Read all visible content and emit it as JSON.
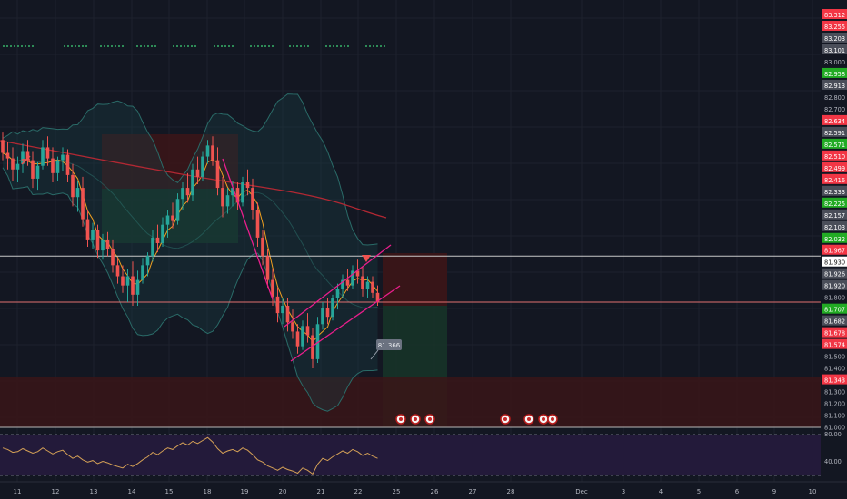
{
  "chart": {
    "type": "candlestick-trading-chart",
    "colors": {
      "background": "#131722",
      "up": "#26a69a",
      "down": "#ef5350",
      "bollinger": "#2a6b68",
      "ma_slow": "#b22833",
      "ma_fast": "#f0a020",
      "channel": "#e91e8c",
      "rsi_line": "#d4a056",
      "rsi_band": "#231a3a",
      "grid": "#1e222d",
      "zone_red": "#3a1518",
      "zone_green": "#173328"
    }
  },
  "chart_data": {
    "type": "candlestick",
    "y_min": 81.0,
    "y_max": 83.32,
    "x_labels": [
      "11",
      "12",
      "13",
      "14",
      "15",
      "18",
      "19",
      "20",
      "21",
      "22",
      "25",
      "26",
      "27",
      "28",
      "Dec",
      "3",
      "4",
      "5",
      "6",
      "9",
      "10"
    ],
    "price_labels": [
      {
        "text": "83.312",
        "color": "red"
      },
      {
        "text": "83.255",
        "color": "red"
      },
      {
        "text": "83.203",
        "color": "gray"
      },
      {
        "text": "83.101",
        "color": "gray"
      },
      {
        "text": "83.000",
        "color": "plain"
      },
      {
        "text": "82.958",
        "color": "green"
      },
      {
        "text": "82.913",
        "color": "gray"
      },
      {
        "text": "82.800",
        "color": "plain"
      },
      {
        "text": "82.700",
        "color": "plain"
      },
      {
        "text": "82.634",
        "color": "red"
      },
      {
        "text": "82.591",
        "color": "gray"
      },
      {
        "text": "82.571",
        "color": "green"
      },
      {
        "text": "82.510",
        "color": "red"
      },
      {
        "text": "82.499",
        "color": "red"
      },
      {
        "text": "82.416",
        "color": "red"
      },
      {
        "text": "82.333",
        "color": "gray"
      },
      {
        "text": "82.225",
        "color": "green"
      },
      {
        "text": "82.157",
        "color": "gray"
      },
      {
        "text": "82.103",
        "color": "gray"
      },
      {
        "text": "82.032",
        "color": "green"
      },
      {
        "text": "81.967",
        "color": "red"
      },
      {
        "text": "81.930",
        "color": "white"
      },
      {
        "text": "81.926",
        "color": "gray"
      },
      {
        "text": "81.920",
        "color": "gray"
      },
      {
        "text": "81.800",
        "color": "plain"
      },
      {
        "text": "81.707",
        "color": "green"
      },
      {
        "text": "81.682",
        "color": "gray"
      },
      {
        "text": "81.678",
        "color": "red"
      },
      {
        "text": "81.574",
        "color": "red"
      },
      {
        "text": "81.500",
        "color": "plain"
      },
      {
        "text": "81.400",
        "color": "plain"
      },
      {
        "text": "81.343",
        "color": "red"
      },
      {
        "text": "81.300",
        "color": "plain"
      },
      {
        "text": "81.200",
        "color": "plain"
      },
      {
        "text": "81.100",
        "color": "plain"
      },
      {
        "text": "81.000",
        "color": "plain"
      }
    ],
    "rsi_labels": [
      "80.00",
      "40.00"
    ],
    "annotations": {
      "price_callout": "81.366"
    },
    "lines": {
      "resistance": 81.93,
      "current": 81.68
    },
    "candles": [
      [
        82.56,
        82.6,
        82.45,
        82.49
      ],
      [
        82.49,
        82.55,
        82.4,
        82.46
      ],
      [
        82.46,
        82.52,
        82.34,
        82.4
      ],
      [
        82.4,
        82.47,
        82.33,
        82.43
      ],
      [
        82.43,
        82.54,
        82.38,
        82.5
      ],
      [
        82.5,
        82.56,
        82.42,
        82.45
      ],
      [
        82.45,
        82.5,
        82.3,
        82.35
      ],
      [
        82.35,
        82.44,
        82.29,
        82.42
      ],
      [
        82.42,
        82.56,
        82.4,
        82.52
      ],
      [
        82.52,
        82.58,
        82.42,
        82.46
      ],
      [
        82.46,
        82.52,
        82.33,
        82.38
      ],
      [
        82.38,
        82.47,
        82.34,
        82.45
      ],
      [
        82.45,
        82.52,
        82.39,
        82.48
      ],
      [
        82.48,
        82.51,
        82.33,
        82.37
      ],
      [
        82.37,
        82.43,
        82.2,
        82.25
      ],
      [
        82.25,
        82.34,
        82.17,
        82.3
      ],
      [
        82.3,
        82.36,
        82.09,
        82.13
      ],
      [
        82.13,
        82.18,
        81.98,
        82.02
      ],
      [
        82.02,
        82.11,
        81.97,
        82.07
      ],
      [
        82.07,
        82.1,
        81.92,
        81.96
      ],
      [
        81.96,
        82.05,
        81.91,
        82.02
      ],
      [
        82.02,
        82.06,
        81.93,
        81.97
      ],
      [
        81.97,
        82.02,
        81.84,
        81.88
      ],
      [
        81.88,
        81.92,
        81.78,
        81.82
      ],
      [
        81.82,
        81.88,
        81.73,
        81.77
      ],
      [
        81.77,
        81.86,
        81.68,
        81.82
      ],
      [
        81.82,
        81.9,
        81.66,
        81.72
      ],
      [
        81.72,
        81.85,
        81.66,
        81.8
      ],
      [
        81.8,
        81.92,
        81.78,
        81.88
      ],
      [
        81.88,
        81.95,
        81.82,
        81.93
      ],
      [
        81.93,
        82.07,
        81.9,
        82.03
      ],
      [
        82.03,
        82.1,
        81.95,
        82.0
      ],
      [
        82.0,
        82.14,
        81.98,
        82.1
      ],
      [
        82.1,
        82.18,
        82.03,
        82.15
      ],
      [
        82.15,
        82.22,
        82.08,
        82.12
      ],
      [
        82.12,
        82.27,
        82.1,
        82.24
      ],
      [
        82.24,
        82.33,
        82.18,
        82.3
      ],
      [
        82.3,
        82.38,
        82.22,
        82.26
      ],
      [
        82.26,
        82.43,
        82.23,
        82.4
      ],
      [
        82.4,
        82.47,
        82.32,
        82.36
      ],
      [
        82.36,
        82.5,
        82.34,
        82.47
      ],
      [
        82.47,
        82.56,
        82.43,
        82.53
      ],
      [
        82.53,
        82.58,
        82.42,
        82.45
      ],
      [
        82.45,
        82.52,
        82.26,
        82.3
      ],
      [
        82.3,
        82.36,
        82.14,
        82.2
      ],
      [
        82.2,
        82.3,
        82.16,
        82.26
      ],
      [
        82.26,
        82.34,
        82.2,
        82.3
      ],
      [
        82.3,
        82.33,
        82.18,
        82.22
      ],
      [
        82.22,
        82.36,
        82.2,
        82.33
      ],
      [
        82.33,
        82.4,
        82.26,
        82.3
      ],
      [
        82.3,
        82.35,
        82.13,
        82.18
      ],
      [
        82.18,
        82.22,
        81.98,
        82.03
      ],
      [
        82.03,
        82.07,
        81.88,
        81.93
      ],
      [
        81.93,
        81.97,
        81.76,
        81.8
      ],
      [
        81.8,
        81.86,
        81.66,
        81.71
      ],
      [
        81.71,
        81.76,
        81.57,
        81.62
      ],
      [
        81.62,
        81.7,
        81.56,
        81.66
      ],
      [
        81.66,
        81.7,
        81.52,
        81.57
      ],
      [
        81.57,
        81.64,
        81.48,
        81.52
      ],
      [
        81.52,
        81.56,
        81.4,
        81.44
      ],
      [
        81.44,
        81.58,
        81.42,
        81.55
      ],
      [
        81.55,
        81.62,
        81.46,
        81.5
      ],
      [
        81.5,
        81.54,
        81.32,
        81.37
      ],
      [
        81.37,
        81.6,
        81.35,
        81.56
      ],
      [
        81.56,
        81.68,
        81.53,
        81.65
      ],
      [
        81.65,
        81.7,
        81.56,
        81.6
      ],
      [
        81.6,
        81.72,
        81.58,
        81.7
      ],
      [
        81.7,
        81.78,
        81.64,
        81.75
      ],
      [
        81.75,
        81.83,
        81.7,
        81.8
      ],
      [
        81.8,
        81.86,
        81.74,
        81.77
      ],
      [
        81.77,
        81.88,
        81.75,
        81.85
      ],
      [
        81.85,
        81.91,
        81.78,
        81.82
      ],
      [
        81.82,
        81.87,
        81.71,
        81.75
      ],
      [
        81.75,
        81.82,
        81.7,
        81.79
      ],
      [
        81.79,
        81.82,
        81.7,
        81.73
      ],
      [
        81.73,
        81.77,
        81.66,
        81.68
      ]
    ],
    "rsi_values": [
      52,
      50,
      46,
      47,
      51,
      48,
      45,
      47,
      52,
      48,
      44,
      47,
      49,
      43,
      38,
      41,
      36,
      33,
      35,
      31,
      34,
      32,
      29,
      27,
      25,
      30,
      27,
      31,
      36,
      40,
      46,
      43,
      48,
      52,
      50,
      55,
      59,
      56,
      61,
      58,
      62,
      66,
      60,
      51,
      45,
      48,
      50,
      47,
      52,
      49,
      43,
      36,
      33,
      28,
      25,
      22,
      26,
      23,
      21,
      18,
      25,
      22,
      17,
      30,
      38,
      35,
      40,
      44,
      48,
      45,
      50,
      47,
      42,
      45,
      41,
      38
    ]
  }
}
